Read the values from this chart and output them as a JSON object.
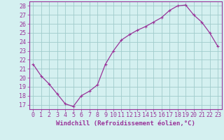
{
  "x": [
    0,
    1,
    2,
    3,
    4,
    5,
    6,
    7,
    8,
    9,
    10,
    11,
    12,
    13,
    14,
    15,
    16,
    17,
    18,
    19,
    20,
    21,
    22,
    23
  ],
  "y": [
    21.5,
    20.2,
    19.3,
    18.2,
    17.1,
    16.8,
    18.0,
    18.5,
    19.2,
    21.5,
    23.0,
    24.2,
    24.8,
    25.3,
    25.7,
    26.2,
    26.7,
    27.5,
    28.0,
    28.1,
    27.0,
    26.2,
    25.0,
    23.5
  ],
  "line_color": "#993399",
  "marker": "+",
  "marker_size": 3,
  "marker_lw": 0.8,
  "bg_color": "#d4f0f0",
  "grid_color": "#a0cccc",
  "xlabel": "Windchill (Refroidissement éolien,°C)",
  "ylabel_ticks": [
    17,
    18,
    19,
    20,
    21,
    22,
    23,
    24,
    25,
    26,
    27,
    28
  ],
  "xlim": [
    -0.5,
    23.5
  ],
  "ylim": [
    16.5,
    28.5
  ],
  "tick_fontsize": 6,
  "xlabel_fontsize": 6.5,
  "axis_label_color": "#993399",
  "tick_color": "#993399",
  "spine_color": "#993399",
  "line_width": 0.9
}
